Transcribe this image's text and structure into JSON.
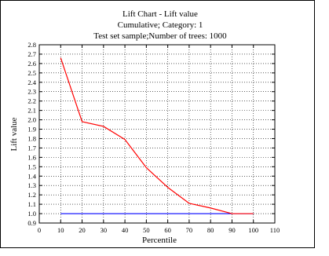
{
  "chart_data": {
    "type": "line",
    "title": "Lift Chart - Lift value",
    "subtitle_lines": [
      "Cumulative; Category: 1",
      "Test set sample;Number of trees: 1000"
    ],
    "xlabel": "Percentile",
    "ylabel": "Lift value",
    "xlim": [
      0,
      110
    ],
    "ylim": [
      0.9,
      2.8
    ],
    "x_ticks": [
      0,
      10,
      20,
      30,
      40,
      50,
      60,
      70,
      80,
      90,
      100,
      110
    ],
    "y_ticks": [
      0.9,
      1.0,
      1.1,
      1.2,
      1.3,
      1.4,
      1.5,
      1.6,
      1.7,
      1.8,
      1.9,
      2.0,
      2.1,
      2.2,
      2.3,
      2.4,
      2.5,
      2.6,
      2.7,
      2.8
    ],
    "grid": true,
    "series": [
      {
        "color": "#ff0000",
        "x": [
          10,
          20,
          30,
          40,
          50,
          60,
          70,
          80,
          90,
          100
        ],
        "values": [
          2.66,
          1.98,
          1.93,
          1.79,
          1.49,
          1.28,
          1.11,
          1.06,
          1.0,
          1.0
        ]
      },
      {
        "color": "#0000ff",
        "x": [
          10,
          100
        ],
        "values": [
          1.0,
          1.0
        ]
      }
    ]
  }
}
